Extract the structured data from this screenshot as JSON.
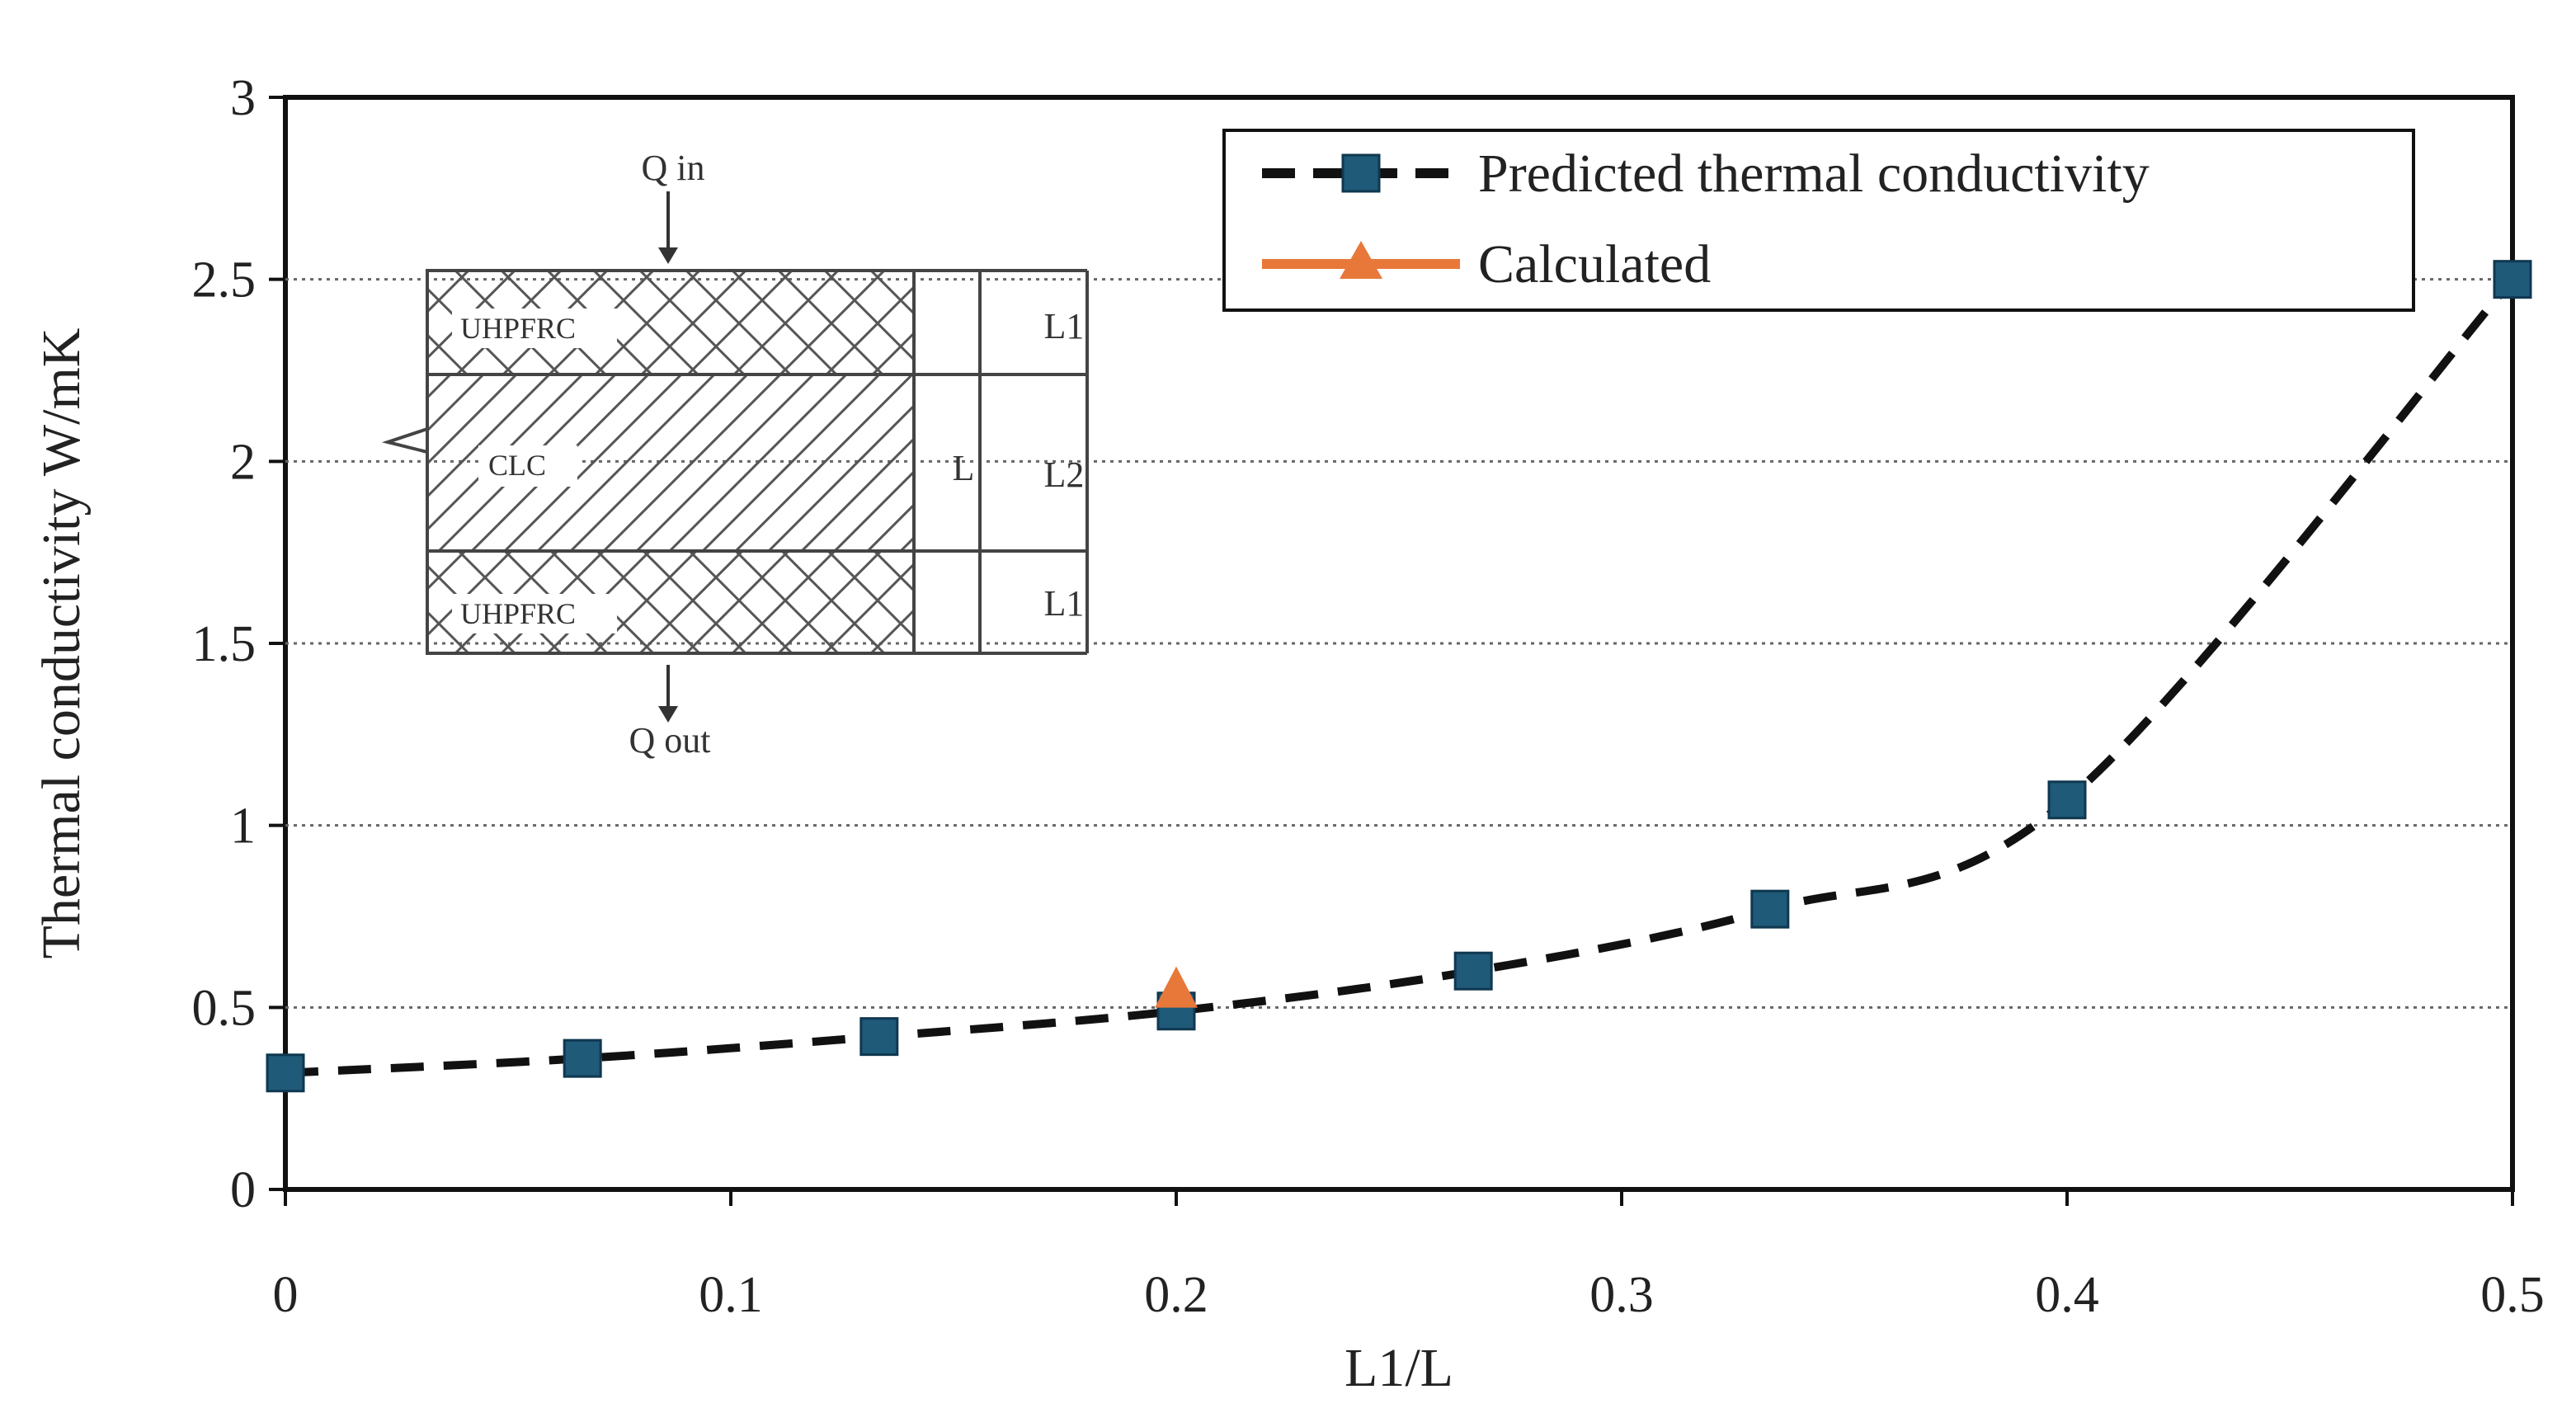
{
  "chart_data": {
    "type": "line",
    "title": "",
    "xlabel": "L1/L",
    "ylabel": "Thermal conductivity W/mK",
    "xlim": [
      0,
      0.5
    ],
    "ylim": [
      0,
      3
    ],
    "x_ticks": [
      "0",
      "0.1",
      "0.2",
      "0.3",
      "0.4",
      "0.5"
    ],
    "y_ticks": [
      "0",
      "0.5",
      "1",
      "1.5",
      "2",
      "2.5",
      "3"
    ],
    "grid": "horizontal-dotted",
    "legend_position": "top-right",
    "series": [
      {
        "name": "Predicted thermal conductivity",
        "style": "dashed-square",
        "color": "#1f5a78",
        "line_color": "#111111",
        "x": [
          0,
          0.0667,
          0.1333,
          0.2,
          0.2667,
          0.3333,
          0.4,
          0.5
        ],
        "y": [
          0.32,
          0.36,
          0.42,
          0.49,
          0.6,
          0.77,
          1.07,
          2.5
        ]
      },
      {
        "name": "Calculated",
        "style": "triangle",
        "color": "#e8783a",
        "x": [
          0.2
        ],
        "y": [
          0.54
        ]
      }
    ],
    "inset": {
      "labels": {
        "q_in": "Q in",
        "q_out": "Q out",
        "top_layer": "UHPFRC",
        "middle_layer": "CLC",
        "bottom_layer": "UHPFRC",
        "dim_l1_top": "L1",
        "dim_l2": "L2",
        "dim_l1_bottom": "L1",
        "dim_l": "L"
      }
    }
  }
}
